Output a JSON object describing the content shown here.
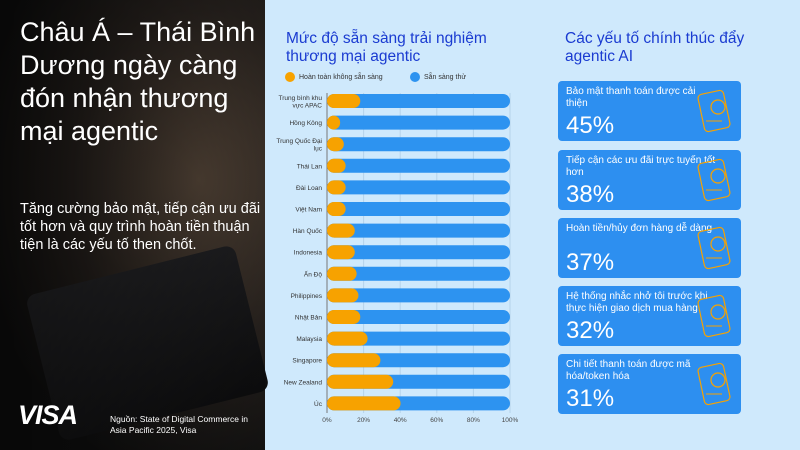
{
  "left": {
    "headline": "Châu Á – Thái Bình Dương ngày càng đón nhận thương mại agentic",
    "subtext": "Tăng cường bảo mật, tiếp cận ưu đãi tốt hơn và quy trình hoàn tiền thuận tiện là các yếu tố then chốt.",
    "logo": "VISA",
    "source": "Nguồn: State of Digital Commerce in Asia Pacific 2025, Visa"
  },
  "chart_data": {
    "type": "bar",
    "stacked": true,
    "orientation": "horizontal",
    "title": "Mức độ sẵn sàng trải nghiệm thương mại agentic",
    "categories": [
      "Trung bình khu vực APAC",
      "Hồng Kông",
      "Trung Quốc Đại lục",
      "Thái Lan",
      "Đài Loan",
      "Việt Nam",
      "Hàn Quốc",
      "Indonesia",
      "Ấn Độ",
      "Philippines",
      "Nhật Bản",
      "Malaysia",
      "Singapore",
      "New Zealand",
      "Úc"
    ],
    "series": [
      {
        "name": "Hoàn toàn không sẵn sàng",
        "color": "#f7a200",
        "values": [
          16,
          5,
          7,
          8,
          8,
          8,
          13,
          13,
          14,
          15,
          16,
          20,
          27,
          34,
          38
        ]
      },
      {
        "name": "Sẵn sàng thử",
        "color": "#2d93f0",
        "values": [
          84,
          95,
          93,
          92,
          92,
          92,
          87,
          87,
          86,
          85,
          84,
          80,
          73,
          66,
          62
        ]
      }
    ],
    "xlim": [
      0,
      100
    ],
    "xticks": [
      "0%",
      "20%",
      "40%",
      "60%",
      "80%",
      "100%"
    ],
    "grid": true,
    "legend": "top"
  },
  "drivers": {
    "title": "Các yếu tố chính thúc đẩy agentic AI",
    "items": [
      {
        "label": "Bảo mật thanh toán được cải thiện",
        "value": "45%",
        "icon": "phone-shield-icon"
      },
      {
        "label": "Tiếp cận các ưu đãi trực tuyến tốt hơn",
        "value": "38%",
        "icon": "phone-discount-tag-icon"
      },
      {
        "label": "Hoàn tiền/hủy đơn hàng dễ dàng",
        "value": "37%",
        "icon": "phone-refund-icon"
      },
      {
        "label": "Hệ thống nhắc nhở tôi trước khi thực hiện giao dịch mua hàng",
        "value": "32%",
        "icon": "phone-reminder-icon"
      },
      {
        "label": "Chi tiết thanh toán được mã hóa/token hóa",
        "value": "31%",
        "icon": "phone-token-icon"
      }
    ]
  }
}
